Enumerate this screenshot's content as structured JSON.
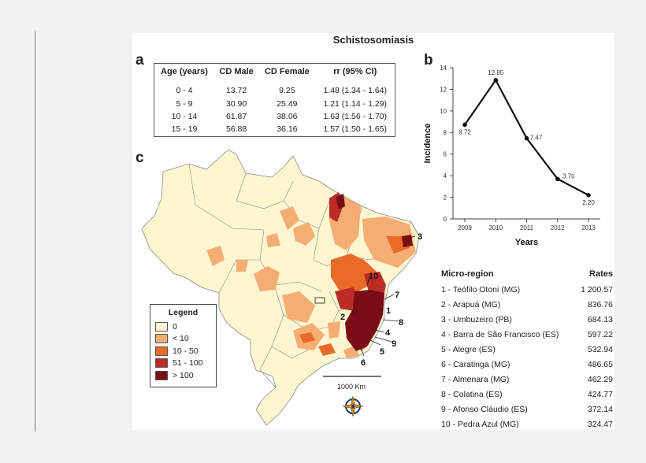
{
  "figure_title": "Schistosomiasis",
  "panel_labels": {
    "a": "a",
    "b": "b",
    "c": "c"
  },
  "table_a": {
    "headers": [
      "Age (years)",
      "CD Male",
      "CD Female",
      "rr (95% CI)"
    ],
    "rows": [
      [
        "0 - 4",
        "13.72",
        "9.25",
        "1.48 (1.34 - 1.64)"
      ],
      [
        "5 - 9",
        "30.90",
        "25.49",
        "1.21 (1.14 - 1.29)"
      ],
      [
        "10 - 14",
        "61.87",
        "38.06",
        "1.63 (1.56 - 1.70)"
      ],
      [
        "15 - 19",
        "56.88",
        "36.16",
        "1.57 (1.50 - 1.65)"
      ]
    ]
  },
  "chart_data": {
    "type": "line",
    "x": [
      "2009",
      "2010",
      "2011",
      "2012",
      "2013"
    ],
    "values": [
      8.72,
      12.85,
      7.47,
      3.7,
      2.2
    ],
    "data_labels": [
      "8.72",
      "12.85",
      "7.47",
      "3.70",
      "2.20"
    ],
    "xlabel": "Years",
    "ylabel": "Incidence",
    "ylim": [
      0,
      14
    ],
    "yticks": [
      "0",
      "2",
      "4",
      "6",
      "8",
      "10",
      "12",
      "14"
    ],
    "grid": false,
    "color": "#111111"
  },
  "legend": {
    "title": "Legend",
    "items": [
      {
        "label": "0",
        "color": "#fdf6d0"
      },
      {
        "label": "< 10",
        "color": "#f4ad72"
      },
      {
        "label": "10 - 50",
        "color": "#ea6a2a"
      },
      {
        "label": "51 - 100",
        "color": "#bb2c26"
      },
      {
        "label": "> 100",
        "color": "#7a0c16"
      }
    ]
  },
  "map": {
    "scale_label": "1000 Km",
    "region_numbers": [
      "1",
      "2",
      "3",
      "4",
      "5",
      "6",
      "7",
      "8",
      "9",
      "10"
    ]
  },
  "micro_regions": {
    "header_name": "Micro-region",
    "header_rate": "Rates",
    "rows": [
      {
        "name": "1 - Teófilo Otoni (MG)",
        "rate": "1 200.57"
      },
      {
        "name": "2 - Arapuá (MG)",
        "rate": "836.76"
      },
      {
        "name": "3 - Umbuzeiro (PB)",
        "rate": "684.13"
      },
      {
        "name": "4 - Barra de São Francisco (ES)",
        "rate": "597.22"
      },
      {
        "name": "5 - Alegre (ES)",
        "rate": "532.94"
      },
      {
        "name": "6 - Caratinga (MG)",
        "rate": "486.65"
      },
      {
        "name": "7 - Almenara (MG)",
        "rate": "462.29"
      },
      {
        "name": "8 - Colatina (ES)",
        "rate": "424.77"
      },
      {
        "name": "9 - Afonso Cláudio (ES)",
        "rate": "372.14"
      },
      {
        "name": "10 - Pedra Azul (MG)",
        "rate": "324.47"
      }
    ]
  }
}
